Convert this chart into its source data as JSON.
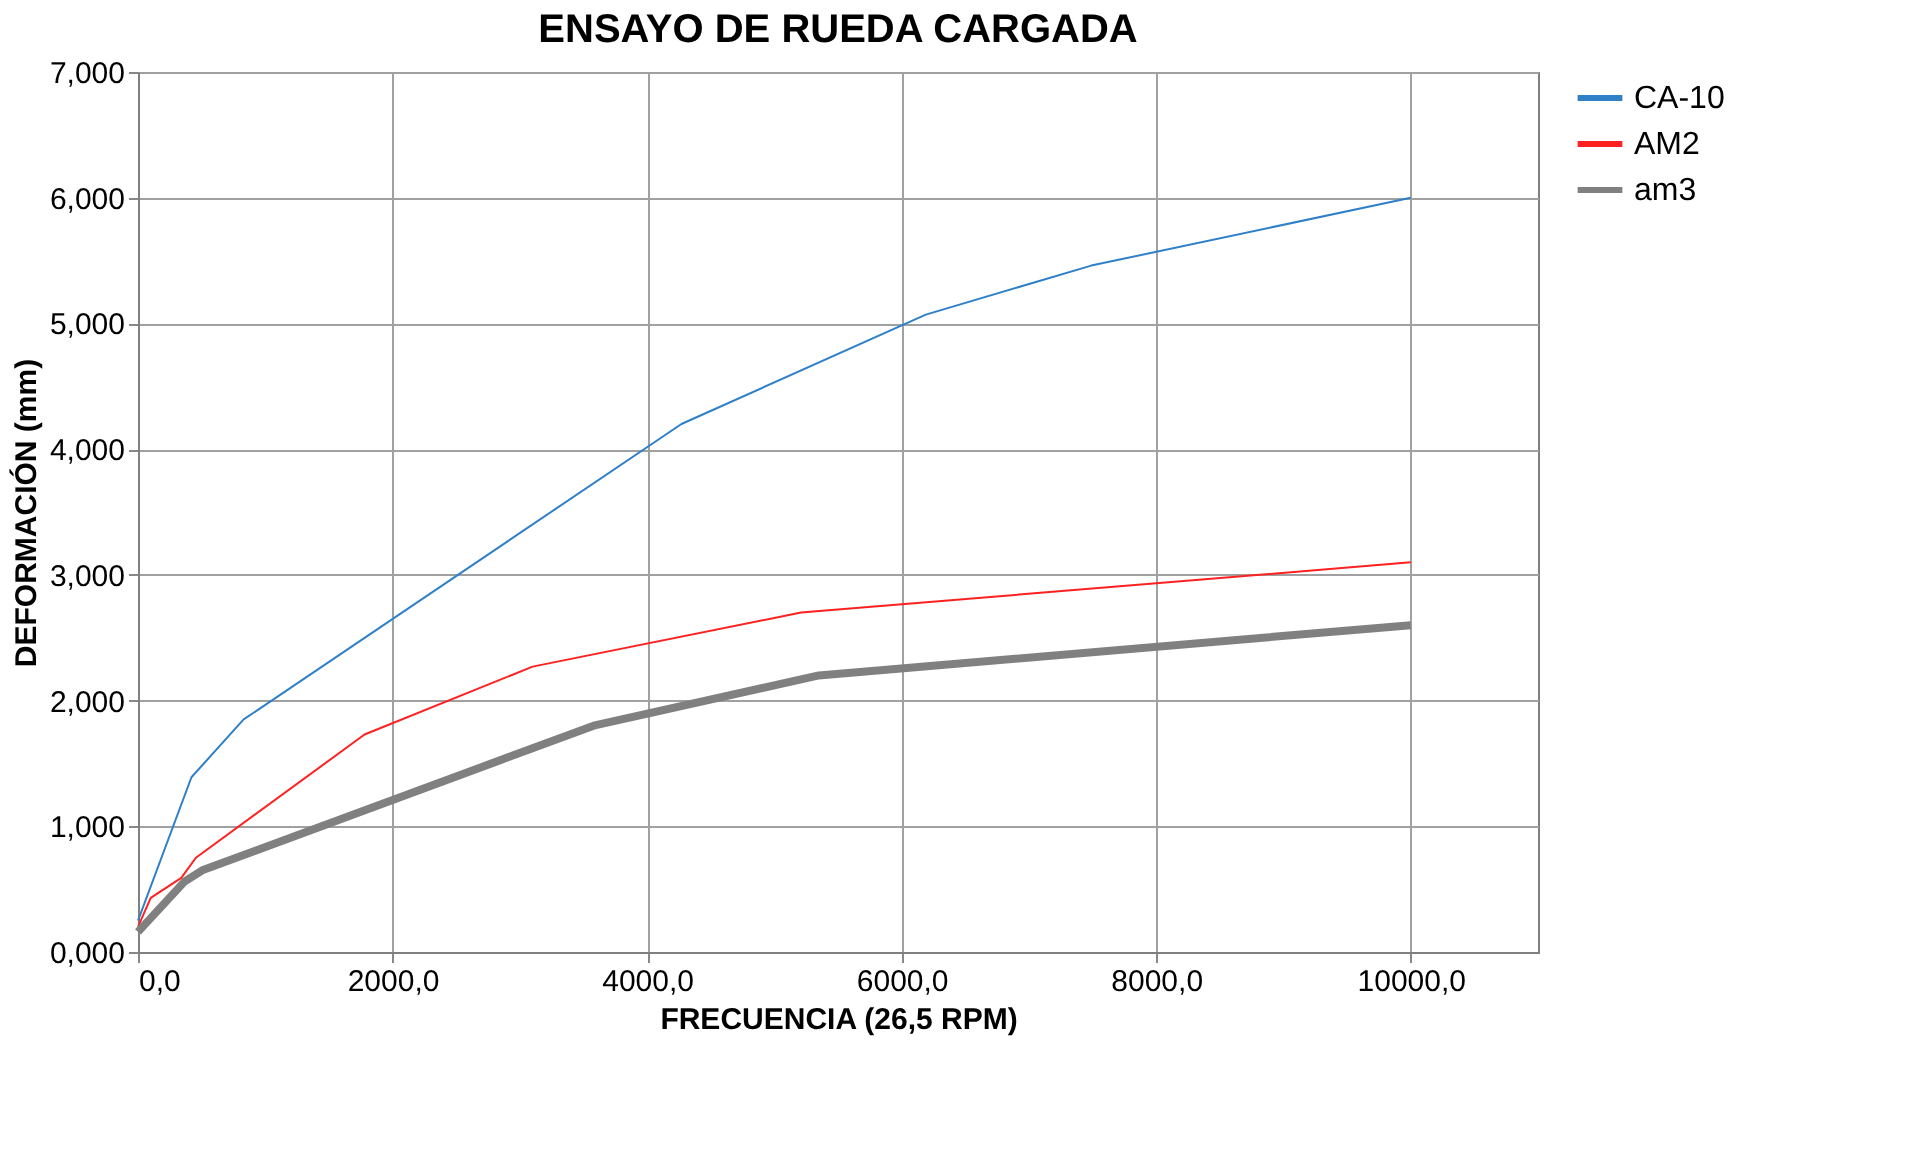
{
  "chart_data": {
    "type": "line",
    "title": "ENSAYO DE RUEDA CARGADA",
    "xlabel": "FRECUENCIA (26,5 RPM)",
    "ylabel": "DEFORMACIÓN (mm)",
    "xlim": [
      0,
      11000
    ],
    "ylim": [
      0,
      7
    ],
    "xticks": [
      {
        "value": 0,
        "label": "0,0"
      },
      {
        "value": 2000,
        "label": "2000,0"
      },
      {
        "value": 4000,
        "label": "4000,0"
      },
      {
        "value": 6000,
        "label": "6000,0"
      },
      {
        "value": 8000,
        "label": "8000,0"
      },
      {
        "value": 10000,
        "label": "10000,0"
      }
    ],
    "yticks": [
      {
        "value": 0,
        "label": "0,000"
      },
      {
        "value": 1,
        "label": "1,000"
      },
      {
        "value": 2,
        "label": "2,000"
      },
      {
        "value": 3,
        "label": "3,000"
      },
      {
        "value": 4,
        "label": "4,000"
      },
      {
        "value": 5,
        "label": "5,000"
      },
      {
        "value": 6,
        "label": "6,000"
      },
      {
        "value": 7,
        "label": "7,000"
      }
    ],
    "grid": true,
    "legend": "right",
    "marker": "none",
    "line_style": "solid",
    "series": [
      {
        "name": "CA-10",
        "color": "#2f80c8",
        "x": [
          0,
          420,
          830,
          4270,
          6190,
          7490,
          10000
        ],
        "values": [
          0.25,
          1.39,
          1.85,
          4.2,
          5.07,
          5.46,
          6.0
        ]
      },
      {
        "name": "AM2",
        "color": "#ff2020",
        "x": [
          0,
          100,
          340,
          455,
          1780,
          3100,
          5210,
          10000
        ],
        "values": [
          0.2,
          0.43,
          0.59,
          0.75,
          1.73,
          2.27,
          2.7,
          3.1
        ]
      },
      {
        "name": "am3",
        "color": "#808080",
        "x": [
          0,
          365,
          505,
          3580,
          5350,
          10000
        ],
        "values": [
          0.16,
          0.56,
          0.65,
          1.8,
          2.2,
          2.6
        ]
      }
    ]
  }
}
